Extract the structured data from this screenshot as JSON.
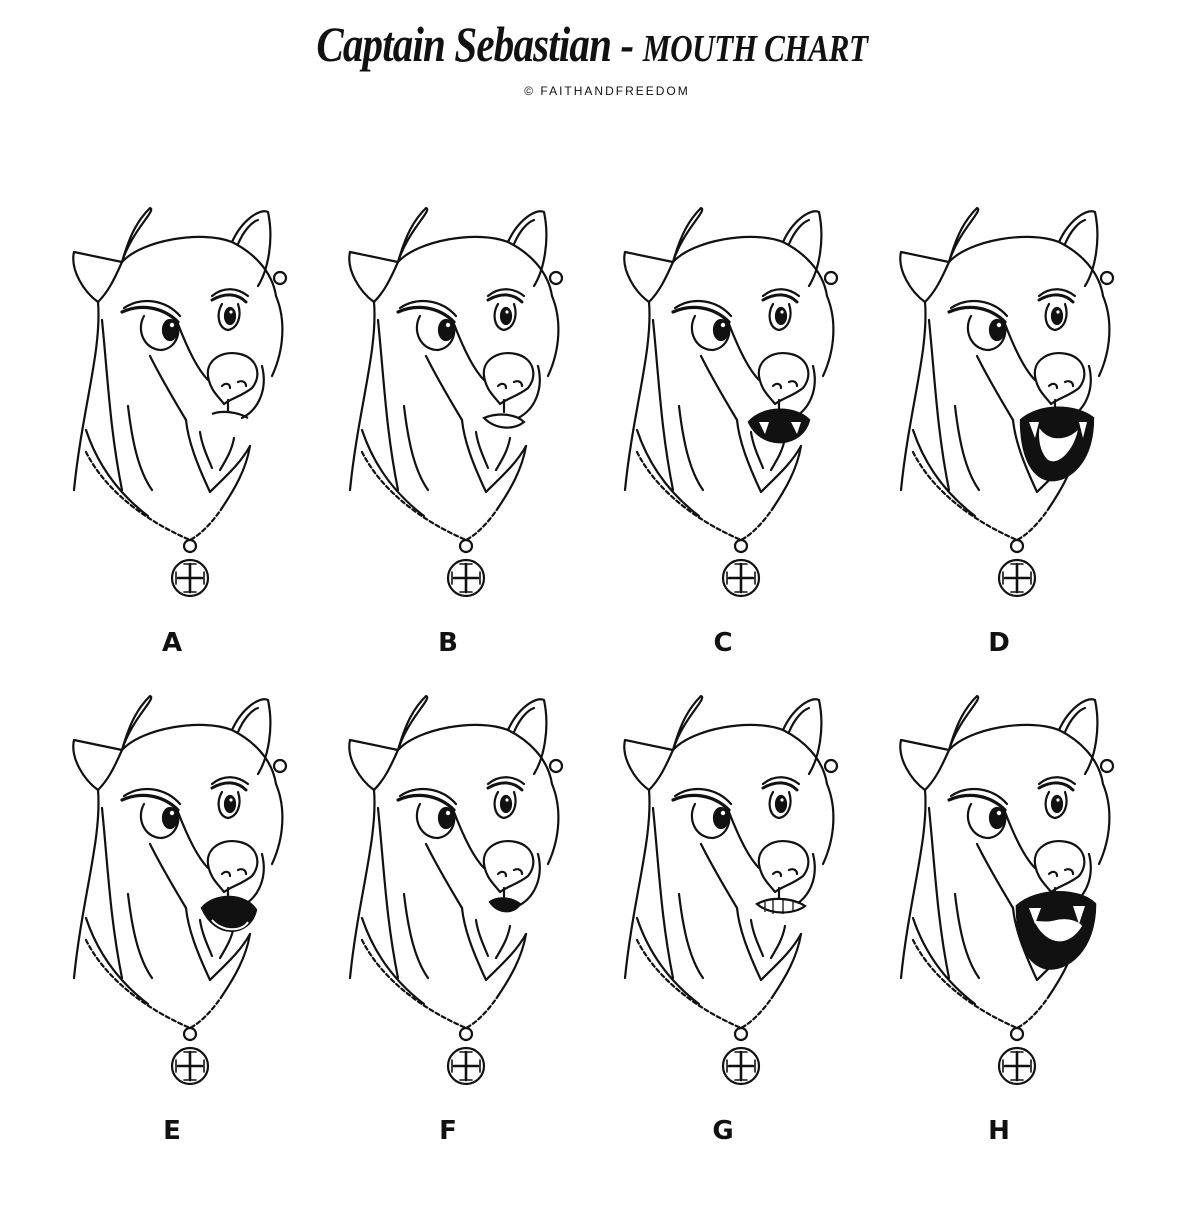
{
  "header": {
    "title_main": "Captain Sebastian - ",
    "title_sub": "MOUTH CHART",
    "credit": "© FAITHANDFREEDOM"
  },
  "faces": [
    {
      "label": "A",
      "mouth": "closed"
    },
    {
      "label": "B",
      "mouth": "slightly-open"
    },
    {
      "label": "C",
      "mouth": "open-teeth"
    },
    {
      "label": "D",
      "mouth": "wide-open"
    },
    {
      "label": "E",
      "mouth": "open-round"
    },
    {
      "label": "F",
      "mouth": "small-open"
    },
    {
      "label": "G",
      "mouth": "clenched"
    },
    {
      "label": "H",
      "mouth": "wide-snarl"
    }
  ]
}
